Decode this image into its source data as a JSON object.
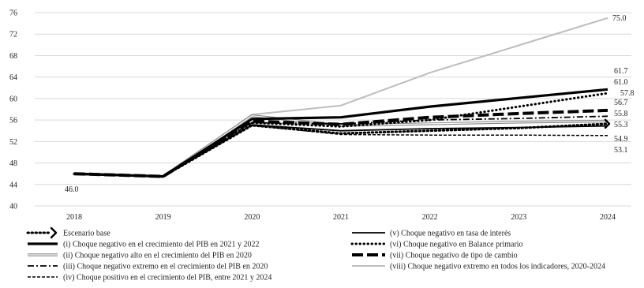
{
  "chart_data": {
    "type": "line",
    "title": "",
    "xlabel": "",
    "ylabel": "",
    "x": [
      "2018",
      "2019",
      "2020",
      "2021",
      "2022",
      "2023",
      "2024"
    ],
    "ylim": [
      40,
      76
    ],
    "yticks": [
      40,
      44,
      48,
      52,
      56,
      60,
      64,
      68,
      72,
      76
    ],
    "grid": "horizontal",
    "legend_position": "bottom",
    "series": [
      {
        "name": "Escenario base",
        "values": [
          46.0,
          45.5,
          55.0,
          53.5,
          54.0,
          54.5,
          55.3
        ],
        "color": "#000000",
        "style": "dotted-arrow",
        "end_label": "55.3"
      },
      {
        "name": "(i) Choque negativo en el crecimiento del PIB en 2021 y 2022",
        "values": [
          46.0,
          45.5,
          56.2,
          56.5,
          58.5,
          60.1,
          61.7
        ],
        "color": "#000000",
        "style": "solid-thick",
        "end_label": "61.7"
      },
      {
        "name": "(ii) Choque negativo alto en el crecimiento del PIB en 2020",
        "values": [
          46.0,
          45.5,
          56.8,
          55.0,
          55.3,
          55.6,
          55.8
        ],
        "color": "#888888",
        "style": "double",
        "end_label": "55.8"
      },
      {
        "name": "(iii) Choque negativo extremo en el crecimiento del PIB en 2020",
        "values": [
          46.0,
          45.5,
          55.5,
          55.3,
          56.0,
          56.3,
          56.7
        ],
        "color": "#000000",
        "style": "dash-dot",
        "end_label": "56.7"
      },
      {
        "name": "(iv) Choque positivo en el crecimiento del PIB, entre 2021 y 2024",
        "values": [
          46.0,
          45.5,
          55.0,
          53.3,
          53.2,
          53.2,
          53.1
        ],
        "color": "#000000",
        "style": "dashed-thin",
        "end_label": "53.1"
      },
      {
        "name": "(v) Choque negativo en tasa de interés",
        "values": [
          46.0,
          45.5,
          55.1,
          54.0,
          54.4,
          54.6,
          54.9
        ],
        "color": "#000000",
        "style": "solid",
        "end_label": "54.9"
      },
      {
        "name": "(vi) Choque negativo en Balance primario",
        "values": [
          46.0,
          45.5,
          55.5,
          54.8,
          56.0,
          58.5,
          61.0
        ],
        "color": "#000000",
        "style": "dotted-thick",
        "end_label": "61.0"
      },
      {
        "name": "(vii) Choque negativo de tipo de cambio",
        "values": [
          46.0,
          45.5,
          55.8,
          55.2,
          56.5,
          57.2,
          57.8
        ],
        "color": "#000000",
        "style": "long-dash",
        "end_label": "57.8"
      },
      {
        "name": "(viii) Choque negativo extremo en todos los indicadores, 2020-2024",
        "values": [
          46.0,
          45.5,
          57.0,
          58.7,
          64.8,
          69.9,
          75.0
        ],
        "color": "#b8b8b8",
        "style": "solid-gray",
        "end_label": "75.0"
      }
    ],
    "annotations": [
      {
        "text": "46.0",
        "x": "2018",
        "y": 46.0
      }
    ]
  }
}
